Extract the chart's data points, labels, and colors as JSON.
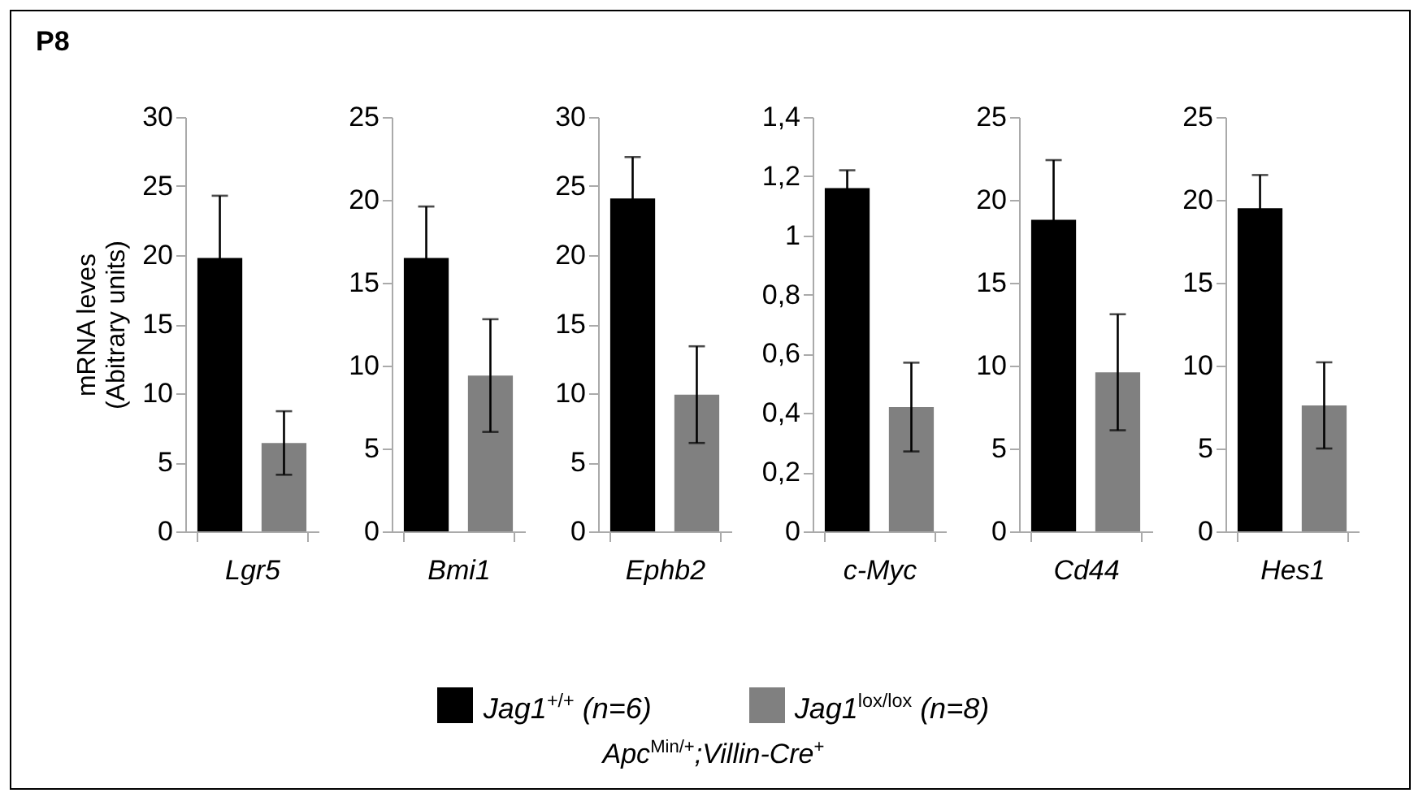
{
  "chart_data": [
    {
      "type": "bar",
      "title": "P8",
      "ylabel": "mRNA leves\n(Abitrary units)",
      "categories": [
        "Lgr5"
      ],
      "ylim": [
        0,
        30
      ],
      "yticks": [
        0,
        5,
        10,
        15,
        20,
        25,
        30
      ],
      "legend": "bottom",
      "annotations": [
        "Apc$^{Min/+}$;Villin-Cre$^{+}$"
      ],
      "series": [
        {
          "name": "Jag1$^{+/+}$ (n=6)",
          "color": "#000000",
          "values": [
            19.8
          ],
          "errors": [
            4.5
          ]
        },
        {
          "name": "Jag1$^{lox/lox}$ (n=8)",
          "color": "#808080",
          "values": [
            6.4
          ],
          "errors": [
            2.3
          ]
        }
      ]
    },
    {
      "type": "bar",
      "categories": [
        "Bmi1"
      ],
      "ylim": [
        0,
        25
      ],
      "yticks": [
        0,
        5,
        10,
        15,
        20,
        25
      ],
      "series": [
        {
          "name": "Jag1$^{+/+}$ (n=6)",
          "color": "#000000",
          "values": [
            16.5
          ],
          "errors": [
            3.1
          ]
        },
        {
          "name": "Jag1$^{lox/lox}$ (n=8)",
          "color": "#808080",
          "values": [
            9.4
          ],
          "errors": [
            3.4
          ]
        }
      ]
    },
    {
      "type": "bar",
      "categories": [
        "Ephb2"
      ],
      "ylim": [
        0,
        30
      ],
      "yticks": [
        0,
        5,
        10,
        15,
        20,
        25,
        30
      ],
      "series": [
        {
          "name": "Jag1$^{+/+}$ (n=6)",
          "color": "#000000",
          "values": [
            24.1
          ],
          "errors": [
            3.0
          ]
        },
        {
          "name": "Jag1$^{lox/lox}$ (n=8)",
          "color": "#808080",
          "values": [
            9.9
          ],
          "errors": [
            3.5
          ]
        }
      ]
    },
    {
      "type": "bar",
      "categories": [
        "c-Myc"
      ],
      "ylim": [
        0,
        1.4
      ],
      "yticks": [
        0,
        {
          "value": 0.2,
          "label": "0,2"
        },
        {
          "value": 0.4,
          "label": "0,4"
        },
        {
          "value": 0.6,
          "label": "0,6"
        },
        {
          "value": 0.8,
          "label": "0,8"
        },
        1,
        {
          "value": 1.2,
          "label": "1,2"
        },
        {
          "value": 1.4,
          "label": "1,4"
        }
      ],
      "series": [
        {
          "name": "Jag1$^{+/+}$ (n=6)",
          "color": "#000000",
          "values": [
            1.16
          ],
          "errors": [
            0.06
          ]
        },
        {
          "name": "Jag1$^{lox/lox}$ (n=8)",
          "color": "#808080",
          "values": [
            0.42
          ],
          "errors": [
            0.15
          ]
        }
      ]
    },
    {
      "type": "bar",
      "categories": [
        "Cd44"
      ],
      "ylim": [
        0,
        25
      ],
      "yticks": [
        0,
        5,
        10,
        15,
        20,
        25
      ],
      "series": [
        {
          "name": "Jag1$^{+/+}$ (n=6)",
          "color": "#000000",
          "values": [
            18.8
          ],
          "errors": [
            3.6
          ]
        },
        {
          "name": "Jag1$^{lox/lox}$ (n=8)",
          "color": "#808080",
          "values": [
            9.6
          ],
          "errors": [
            3.5
          ]
        }
      ]
    },
    {
      "type": "bar",
      "categories": [
        "Hes1"
      ],
      "ylim": [
        0,
        25
      ],
      "yticks": [
        0,
        5,
        10,
        15,
        20,
        25
      ],
      "series": [
        {
          "name": "Jag1$^{+/+}$ (n=6)",
          "color": "#000000",
          "values": [
            19.5
          ],
          "errors": [
            2.0
          ]
        },
        {
          "name": "Jag1$^{lox/lox}$ (n=8)",
          "color": "#808080",
          "values": [
            7.6
          ],
          "errors": [
            2.6
          ]
        }
      ]
    }
  ]
}
